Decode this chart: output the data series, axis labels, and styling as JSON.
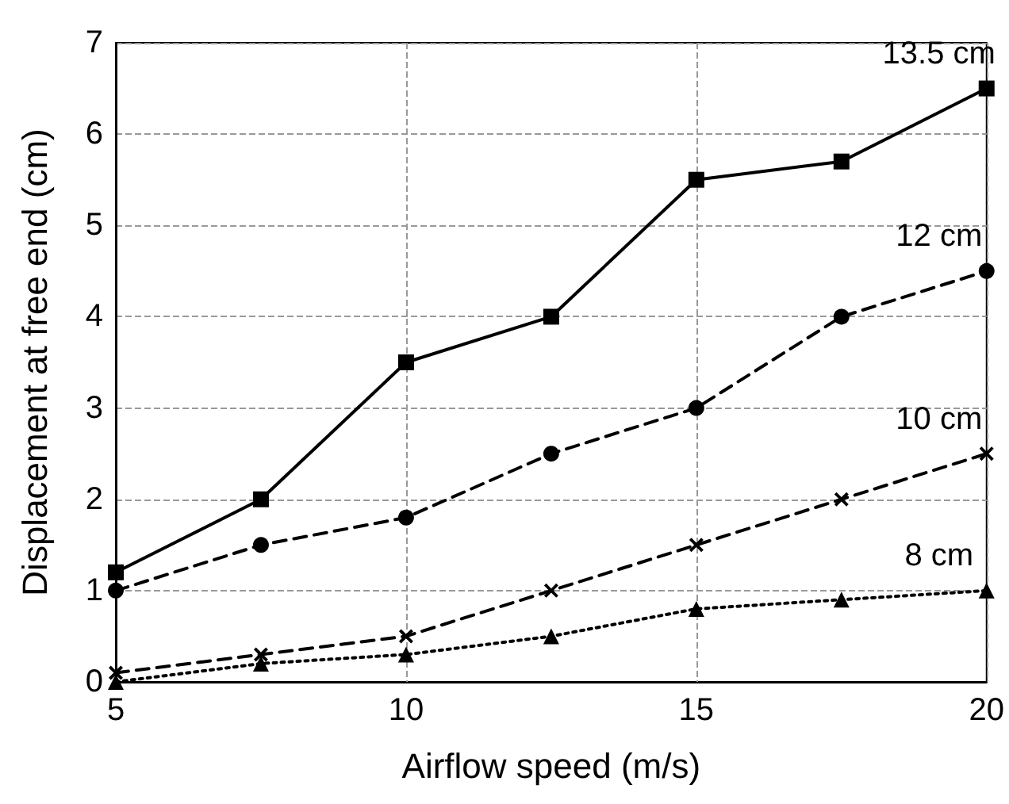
{
  "chart_data": {
    "type": "line",
    "xlabel": "Airflow speed (m/s)",
    "ylabel": "Displacement at free end (cm)",
    "x": [
      5,
      7.5,
      10,
      12.5,
      15,
      17.5,
      20
    ],
    "xlim": [
      5,
      20
    ],
    "xticks": [
      5,
      10,
      15,
      20
    ],
    "ylim": [
      0,
      7
    ],
    "yticks": [
      0,
      1,
      2,
      3,
      4,
      5,
      6,
      7
    ],
    "grid": true,
    "legend": false,
    "series": [
      {
        "name": "13.5 cm",
        "color": "#000000",
        "marker": "square",
        "line_style": "solid",
        "values": [
          1.2,
          2,
          3.5,
          4,
          5.5,
          5.7,
          6.5
        ]
      },
      {
        "name": "12 cm",
        "color": "#000000",
        "marker": "circle",
        "line_style": "dashed",
        "values": [
          1,
          1.5,
          1.8,
          2.5,
          3,
          4,
          4.5
        ]
      },
      {
        "name": "10 cm",
        "color": "#000000",
        "marker": "cross",
        "line_style": "dashed",
        "values": [
          0.1,
          0.3,
          0.5,
          1,
          1.5,
          2,
          2.5
        ]
      },
      {
        "name": "8 cm",
        "color": "#000000",
        "marker": "triangle",
        "line_style": "dotted",
        "values": [
          0,
          0.2,
          0.3,
          0.5,
          0.8,
          0.9,
          1
        ]
      }
    ]
  }
}
